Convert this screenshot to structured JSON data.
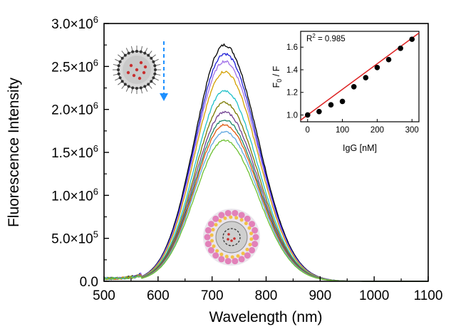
{
  "chart_data": [
    {
      "type": "line",
      "title": "",
      "xlabel": "Wavelength (nm)",
      "ylabel": "Fluorescence Intensity",
      "xlim": [
        500,
        1100
      ],
      "ylim": [
        0,
        3000000
      ],
      "x_ticks": [
        500,
        600,
        700,
        800,
        900,
        1000,
        1100
      ],
      "y_tick_values": [
        0,
        500000,
        1000000,
        1500000,
        2000000,
        2500000,
        3000000
      ],
      "x_tick_labels": [
        "500",
        "600",
        "700",
        "800",
        "900",
        "1000",
        "1100"
      ],
      "y_tick_labels": [
        {
          "mantissa": "0.0",
          "exponent": ""
        },
        {
          "mantissa": "5.0×10",
          "exponent": "5"
        },
        {
          "mantissa": "1.0×10",
          "exponent": "6"
        },
        {
          "mantissa": "1.5×10",
          "exponent": "6"
        },
        {
          "mantissa": "2.0×10",
          "exponent": "6"
        },
        {
          "mantissa": "2.5×10",
          "exponent": "6"
        },
        {
          "mantissa": "3.0×10",
          "exponent": "6"
        }
      ],
      "series_shape": {
        "peak_wavelength": 723,
        "width_left": 55,
        "width_right": 62
      },
      "series": [
        {
          "peak": 2750000,
          "color": "#000000"
        },
        {
          "peak": 2650000,
          "color": "#1f1fd6"
        },
        {
          "peak": 2560000,
          "color": "#a070e8"
        },
        {
          "peak": 2440000,
          "color": "#d4a000"
        },
        {
          "peak": 2220000,
          "color": "#20c0c8"
        },
        {
          "peak": 2080000,
          "color": "#7a7a00"
        },
        {
          "peak": 1970000,
          "color": "#704090"
        },
        {
          "peak": 1880000,
          "color": "#208868"
        },
        {
          "peak": 1820000,
          "color": "#e05a10"
        },
        {
          "peak": 1740000,
          "color": "#60a8e0"
        },
        {
          "peak": 1640000,
          "color": "#6cc030"
        }
      ],
      "grid": false,
      "legend": "none",
      "annotations": {
        "arrow_color": "#1e90ff",
        "arrow_direction": "down"
      }
    },
    {
      "type": "scatter",
      "title": "",
      "xlabel": "IgG [nM]",
      "ylabel": "F0 / F",
      "ylabel_parts": {
        "main": "F",
        "subscript": "0",
        "rest": " / F"
      },
      "xlim": [
        -20,
        320
      ],
      "ylim": [
        0.94,
        1.74
      ],
      "x_ticks": [
        0,
        100,
        200,
        300
      ],
      "y_ticks": [
        "1.0",
        "1.2",
        "1.4",
        "1.6"
      ],
      "points": [
        {
          "x": 0,
          "y": 1.0
        },
        {
          "x": 33,
          "y": 1.03
        },
        {
          "x": 67,
          "y": 1.09
        },
        {
          "x": 100,
          "y": 1.12
        },
        {
          "x": 133,
          "y": 1.25
        },
        {
          "x": 167,
          "y": 1.33
        },
        {
          "x": 200,
          "y": 1.42
        },
        {
          "x": 233,
          "y": 1.49
        },
        {
          "x": 267,
          "y": 1.59
        },
        {
          "x": 300,
          "y": 1.67
        }
      ],
      "fit_line": {
        "x": [
          -20,
          320
        ],
        "y": [
          0.955,
          1.725
        ],
        "color": "#dd2222"
      },
      "annotation": {
        "prefix": "R",
        "superscript": "2",
        "value_text": " = 0.985"
      }
    }
  ]
}
